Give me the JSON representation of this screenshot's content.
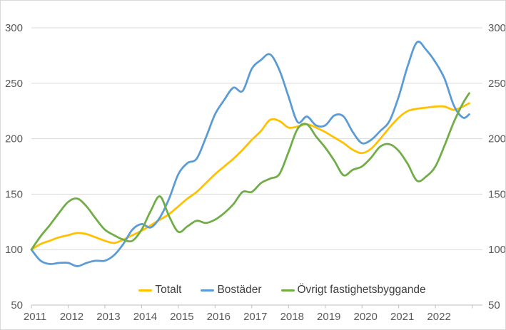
{
  "chart_data": {
    "type": "line",
    "title": "",
    "xlabel": "",
    "ylabel": "",
    "x_years": [
      2011.0,
      2011.25,
      2011.5,
      2011.75,
      2012.0,
      2012.25,
      2012.5,
      2012.75,
      2013.0,
      2013.25,
      2013.5,
      2013.75,
      2014.0,
      2014.25,
      2014.5,
      2014.75,
      2015.0,
      2015.25,
      2015.5,
      2015.75,
      2016.0,
      2016.25,
      2016.5,
      2016.75,
      2017.0,
      2017.25,
      2017.5,
      2017.75,
      2018.0,
      2018.25,
      2018.5,
      2018.75,
      2019.0,
      2019.25,
      2019.5,
      2019.75,
      2020.0,
      2020.25,
      2020.5,
      2020.75,
      2021.0,
      2021.25,
      2021.5,
      2021.75,
      2022.0,
      2022.25,
      2022.5,
      2022.75,
      2022.92
    ],
    "series": [
      {
        "name": "Totalt",
        "color": "#FFC000",
        "values": [
          100,
          105,
          108,
          111,
          113,
          115,
          114,
          111,
          108,
          106,
          109,
          113,
          117,
          122,
          127,
          132,
          139,
          146,
          152,
          160,
          168,
          175,
          182,
          190,
          199,
          207,
          217,
          216,
          210,
          211,
          213,
          210,
          206,
          201,
          196,
          190,
          187,
          191,
          200,
          210,
          219,
          225,
          227,
          228,
          229,
          229,
          226,
          229,
          232
        ]
      },
      {
        "name": "Bostäder",
        "color": "#5B9BD5",
        "values": [
          100,
          90,
          87,
          88,
          88,
          85,
          88,
          90,
          90,
          95,
          105,
          118,
          123,
          120,
          129,
          146,
          168,
          178,
          182,
          201,
          222,
          235,
          246,
          243,
          263,
          271,
          276,
          262,
          238,
          215,
          220,
          212,
          212,
          221,
          220,
          206,
          196,
          199,
          207,
          216,
          238,
          266,
          287,
          280,
          269,
          254,
          230,
          219,
          222
        ]
      },
      {
        "name": "Övrigt fastighetsbyggande",
        "color": "#70AD47",
        "values": [
          100,
          112,
          122,
          133,
          143,
          146,
          139,
          128,
          118,
          113,
          109,
          108,
          118,
          135,
          148,
          130,
          116,
          121,
          126,
          124,
          127,
          133,
          141,
          152,
          152,
          160,
          164,
          168,
          188,
          209,
          213,
          202,
          192,
          180,
          167,
          172,
          175,
          183,
          193,
          195,
          189,
          177,
          162,
          166,
          175,
          194,
          215,
          232,
          241
        ]
      }
    ],
    "y_ticks": [
      50,
      100,
      150,
      200,
      250,
      300
    ],
    "y_tick_labels": [
      "50",
      "100",
      "150",
      "200",
      "250",
      "300"
    ],
    "x_tick_labels": [
      "2011",
      "2012",
      "2013",
      "2014",
      "2015",
      "2016",
      "2017",
      "2018",
      "2019",
      "2020",
      "2021",
      "2022"
    ],
    "ylim": [
      50,
      300
    ],
    "xlim": [
      2011,
      2023.28
    ],
    "grid": true,
    "legend_position": "bottom",
    "colors": {
      "axis_label": "#595959",
      "gridline": "#d9d9d9",
      "axis_line": "#bfbfbf",
      "legend_text": "#404040",
      "background": "#ffffff",
      "border": "#d9d9d9"
    }
  }
}
